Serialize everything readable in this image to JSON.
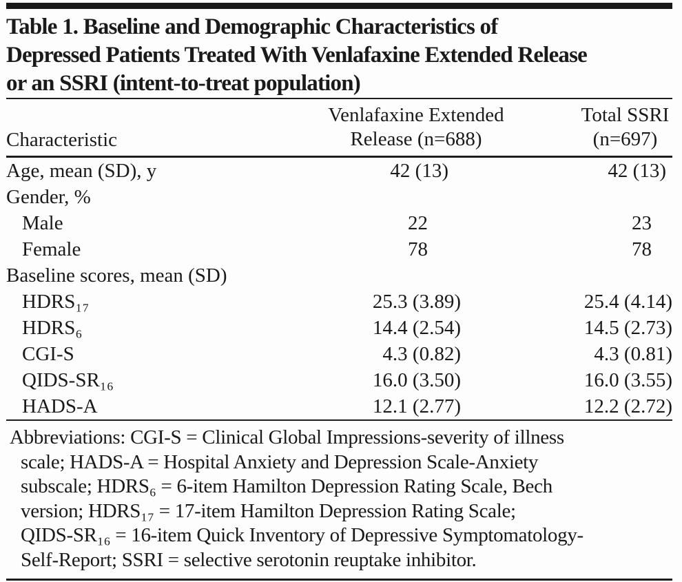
{
  "colors": {
    "text": "#1a1a1a",
    "rule": "#1c1c1c",
    "background": "#fdfdfd"
  },
  "title_lines": [
    "Table 1. Baseline and Demographic Characteristics of",
    "Depressed Patients Treated With Venlafaxine Extended Release",
    "or an SSRI (intent-to-treat population)"
  ],
  "header": {
    "characteristic": "Characteristic",
    "venlafaxine_line1": "Venlafaxine Extended",
    "venlafaxine_line2": "Release (n=688)",
    "ssri_line1": "Total SSRI",
    "ssri_line2": "(n=697)"
  },
  "rows": [
    {
      "label": "Age, mean (SD), y",
      "indent": false,
      "v1": "42 (13)",
      "v2": "42 (13)"
    },
    {
      "label": "Gender, %",
      "indent": false,
      "v1": "",
      "v2": ""
    },
    {
      "label": "Male",
      "indent": true,
      "v1": "22",
      "v2": "23"
    },
    {
      "label": "Female",
      "indent": true,
      "v1": "78",
      "v2": "78"
    },
    {
      "label": "Baseline scores, mean (SD)",
      "indent": false,
      "v1": "",
      "v2": ""
    },
    {
      "label": "HDRS₁₇",
      "indent": true,
      "v1": "25.3 (3.89)",
      "v2": "25.4 (4.14)"
    },
    {
      "label": "HDRS₆",
      "indent": true,
      "v1": "14.4 (2.54)",
      "v2": "14.5 (2.73)"
    },
    {
      "label": "CGI-S",
      "indent": true,
      "v1": "4.3 (0.82)",
      "v2": "4.3 (0.81)"
    },
    {
      "label": "QIDS-SR₁₆",
      "indent": true,
      "v1": "16.0 (3.50)",
      "v2": "16.0 (3.55)"
    },
    {
      "label": "HADS-A",
      "indent": true,
      "v1": "12.1 (2.77)",
      "v2": "12.2 (2.72)"
    }
  ],
  "footnote_lines": [
    "Abbreviations: CGI-S = Clinical Global Impressions-severity of illness",
    "scale; HADS-A = Hospital Anxiety and Depression Scale-Anxiety",
    "subscale; HDRS₆ = 6-item Hamilton Depression Rating Scale, Bech",
    "version; HDRS₁₇ = 17-item Hamilton Depression Rating Scale;",
    "QIDS-SR₁₆ = 16-item Quick Inventory of Depressive Symptomatology-",
    "Self-Report; SSRI = selective serotonin reuptake inhibitor."
  ]
}
